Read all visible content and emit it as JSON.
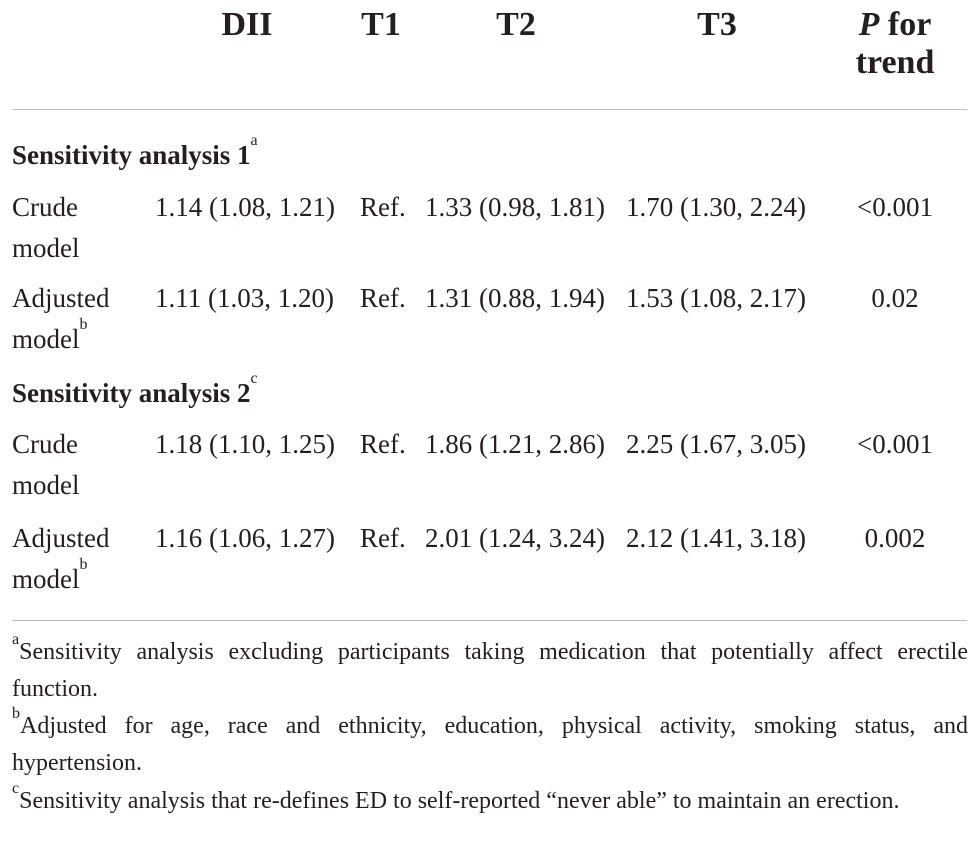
{
  "header": {
    "columns": [
      "DII",
      "T1",
      "T2",
      "T3"
    ],
    "p_trend": {
      "italic": "P",
      "rest": "for trend"
    }
  },
  "sections": [
    {
      "label": "Sensitivity analysis 1",
      "note": "a",
      "rows": [
        {
          "label": "Crude model",
          "cells": [
            "1.14 (1.08, 1.21)",
            "Ref.",
            "1.33 (0.98, 1.81)",
            "1.70 (1.30, 2.24)"
          ],
          "p": "<0.001"
        },
        {
          "label": "Adjusted model",
          "note": "b",
          "cells": [
            "1.11 (1.03, 1.20)",
            "Ref.",
            "1.31 (0.88, 1.94)",
            "1.53 (1.08, 2.17)"
          ],
          "p": "0.02"
        }
      ]
    },
    {
      "label": "Sensitivity analysis 2",
      "note": "c",
      "rows": [
        {
          "label": "Crude model",
          "cells": [
            "1.18 (1.10, 1.25)",
            "Ref.",
            "1.86 (1.21, 2.86)",
            "2.25 (1.67, 3.05)"
          ],
          "p": "<0.001"
        },
        {
          "label": "Adjusted model",
          "note": "b",
          "cells": [
            "1.16 (1.06, 1.27)",
            "Ref.",
            "2.01 (1.24, 3.24)",
            "2.12 (1.41, 3.18)"
          ],
          "p": "0.002"
        }
      ]
    }
  ],
  "footnotes": [
    {
      "mark": "a",
      "text": "Sensitivity analysis excluding participants taking medication that potentially affect erectile function."
    },
    {
      "mark": "b",
      "text": "Adjusted for age, race and ethnicity, education, physical activity, smoking status, and hypertension."
    },
    {
      "mark": "c",
      "text": "Sensitivity analysis that re-defines ED to self-reported “never able” to maintain an erection."
    }
  ]
}
